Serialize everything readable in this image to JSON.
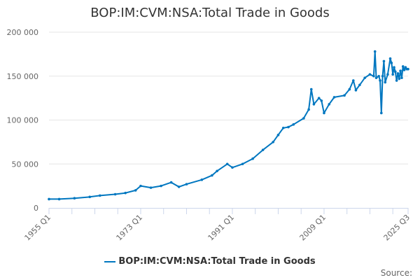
{
  "chart_data": {
    "type": "line",
    "title": "BOP:IM:CVM:NSA:Total Trade in Goods",
    "x_range": [
      "1955 Q1",
      "2025 Q3"
    ],
    "x_tick_labels": [
      "1955 Q1",
      "1973 Q1",
      "1991 Q1",
      "2009 Q1",
      "2025 Q3"
    ],
    "y_tick_labels": [
      "0",
      "50 000",
      "100 000",
      "150 000",
      "200 000"
    ],
    "ylim": [
      0,
      200000
    ],
    "grid": true,
    "legend_position": "bottom",
    "series": [
      {
        "name": "BOP:IM:CVM:NSA:Total Trade in Goods",
        "color": "#0077c0",
        "points": [
          [
            "1955 Q1",
            10000
          ],
          [
            "1957 Q1",
            10000
          ],
          [
            "1960 Q1",
            11000
          ],
          [
            "1963 Q1",
            12500
          ],
          [
            "1965 Q1",
            14000
          ],
          [
            "1968 Q1",
            15500
          ],
          [
            "1970 Q1",
            17000
          ],
          [
            "1972 Q1",
            20000
          ],
          [
            "1973 Q1",
            25000
          ],
          [
            "1975 Q1",
            23000
          ],
          [
            "1977 Q1",
            25000
          ],
          [
            "1979 Q1",
            29000
          ],
          [
            "1980 Q3",
            24000
          ],
          [
            "1982 Q1",
            27000
          ],
          [
            "1985 Q1",
            32000
          ],
          [
            "1987 Q1",
            37000
          ],
          [
            "1988 Q1",
            42000
          ],
          [
            "1990 Q1",
            50000
          ],
          [
            "1991 Q1",
            46000
          ],
          [
            "1993 Q1",
            50000
          ],
          [
            "1995 Q1",
            56000
          ],
          [
            "1997 Q1",
            66000
          ],
          [
            "1999 Q1",
            75000
          ],
          [
            "2000 Q1",
            83000
          ],
          [
            "2001 Q1",
            91000
          ],
          [
            "2002 Q1",
            92000
          ],
          [
            "2003 Q1",
            95000
          ],
          [
            "2005 Q1",
            102000
          ],
          [
            "2006 Q1",
            112000
          ],
          [
            "2006 Q3",
            135000
          ],
          [
            "2007 Q1",
            118000
          ],
          [
            "2008 Q1",
            125000
          ],
          [
            "2008 Q3",
            122000
          ],
          [
            "2009 Q1",
            108000
          ],
          [
            "2010 Q1",
            118000
          ],
          [
            "2011 Q1",
            126000
          ],
          [
            "2013 Q1",
            128000
          ],
          [
            "2014 Q1",
            135000
          ],
          [
            "2014 Q4",
            145000
          ],
          [
            "2015 Q2",
            134000
          ],
          [
            "2016 Q1",
            140000
          ],
          [
            "2017 Q1",
            148000
          ],
          [
            "2018 Q1",
            152000
          ],
          [
            "2018 Q4",
            150000
          ],
          [
            "2019 Q1",
            178000
          ],
          [
            "2019 Q2",
            148000
          ],
          [
            "2019 Q4",
            150000
          ],
          [
            "2020 Q1",
            145000
          ],
          [
            "2020 Q2",
            108000
          ],
          [
            "2020 Q3",
            150000
          ],
          [
            "2020 Q4",
            167000
          ],
          [
            "2021 Q1",
            143000
          ],
          [
            "2021 Q3",
            152000
          ],
          [
            "2022 Q1",
            170000
          ],
          [
            "2022 Q2",
            165000
          ],
          [
            "2022 Q3",
            152000
          ],
          [
            "2022 Q4",
            160000
          ],
          [
            "2023 Q1",
            155000
          ],
          [
            "2023 Q2",
            145000
          ],
          [
            "2023 Q3",
            153000
          ],
          [
            "2023 Q4",
            147000
          ],
          [
            "2024 Q1",
            156000
          ],
          [
            "2024 Q2",
            148000
          ],
          [
            "2024 Q3",
            161000
          ],
          [
            "2024 Q4",
            157000
          ],
          [
            "2025 Q1",
            160000
          ],
          [
            "2025 Q2",
            158000
          ],
          [
            "2025 Q3",
            158000
          ]
        ]
      }
    ],
    "source_label": "Source:"
  }
}
